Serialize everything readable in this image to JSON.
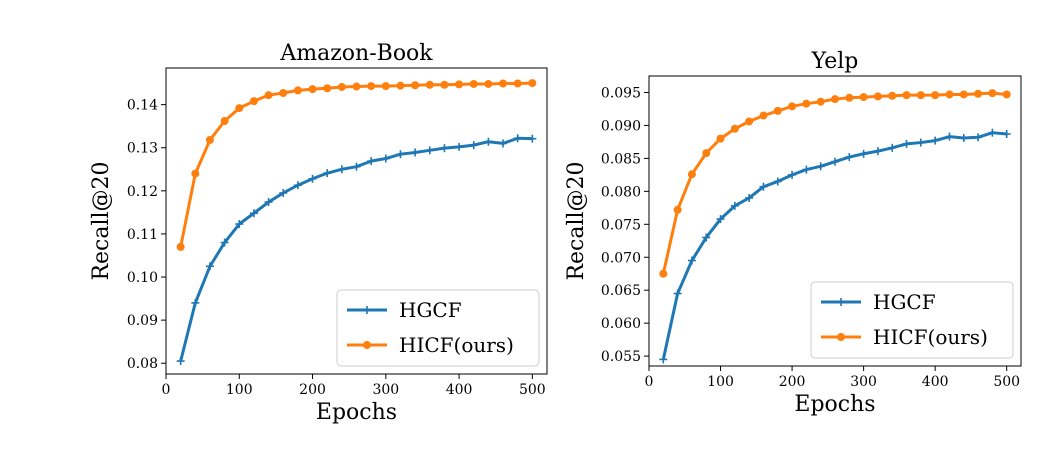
{
  "colors": {
    "hgcf": "#1f77b4",
    "hicf": "#ff7f0e"
  },
  "chart_data": [
    {
      "type": "line",
      "title": "Amazon-Book",
      "xlabel": "Epochs",
      "ylabel": "Recall@20",
      "xlim": [
        0,
        520
      ],
      "ylim": [
        0.0775,
        0.1485
      ],
      "xticks": [
        0,
        100,
        200,
        300,
        400,
        500
      ],
      "xtick_labels": [
        "0",
        "100",
        "200",
        "300",
        "400",
        "500"
      ],
      "yticks": [
        0.08,
        0.09,
        0.1,
        0.11,
        0.12,
        0.13,
        0.14
      ],
      "ytick_labels": [
        "0.08",
        "0.09",
        "0.10",
        "0.11",
        "0.12",
        "0.13",
        "0.14"
      ],
      "legend_position": "lower-right",
      "grid": false,
      "x": [
        20,
        40,
        60,
        80,
        100,
        120,
        140,
        160,
        180,
        200,
        220,
        240,
        260,
        280,
        300,
        320,
        340,
        360,
        380,
        400,
        420,
        440,
        460,
        480,
        500
      ],
      "series": [
        {
          "name": "HGCF",
          "color": "#1f77b4",
          "marker": "plus",
          "values": [
            0.0805,
            0.094,
            0.1025,
            0.108,
            0.1123,
            0.1148,
            0.1174,
            0.1195,
            0.1213,
            0.1228,
            0.1241,
            0.125,
            0.1256,
            0.1269,
            0.1275,
            0.1285,
            0.1289,
            0.1294,
            0.1299,
            0.1302,
            0.1306,
            0.1314,
            0.131,
            0.1322,
            0.1321
          ]
        },
        {
          "name": "HICF(ours)",
          "color": "#ff7f0e",
          "marker": "circle",
          "values": [
            0.107,
            0.124,
            0.1318,
            0.1362,
            0.1392,
            0.1408,
            0.1422,
            0.1427,
            0.1433,
            0.1436,
            0.1438,
            0.1441,
            0.1442,
            0.1443,
            0.1443,
            0.1444,
            0.1445,
            0.1446,
            0.1446,
            0.1447,
            0.1448,
            0.1448,
            0.1449,
            0.1449,
            0.145
          ]
        }
      ]
    },
    {
      "type": "line",
      "title": "Yelp",
      "xlabel": "Epochs",
      "ylabel": "Recall@20",
      "xlim": [
        0,
        520
      ],
      "ylim": [
        0.0535,
        0.0975
      ],
      "xticks": [
        0,
        100,
        200,
        300,
        400,
        500
      ],
      "xtick_labels": [
        "0",
        "100",
        "200",
        "300",
        "400",
        "500"
      ],
      "yticks": [
        0.055,
        0.06,
        0.065,
        0.07,
        0.075,
        0.08,
        0.085,
        0.09,
        0.095
      ],
      "ytick_labels": [
        "0.055",
        "0.060",
        "0.065",
        "0.070",
        "0.075",
        "0.080",
        "0.085",
        "0.090",
        "0.095"
      ],
      "legend_position": "lower-right",
      "grid": false,
      "x": [
        20,
        40,
        60,
        80,
        100,
        120,
        140,
        160,
        180,
        200,
        220,
        240,
        260,
        280,
        300,
        320,
        340,
        360,
        380,
        400,
        420,
        440,
        460,
        480,
        500
      ],
      "series": [
        {
          "name": "HGCF",
          "color": "#1f77b4",
          "marker": "plus",
          "values": [
            0.0545,
            0.0645,
            0.0695,
            0.073,
            0.0758,
            0.0778,
            0.079,
            0.0807,
            0.0815,
            0.0825,
            0.0833,
            0.0838,
            0.0845,
            0.0852,
            0.0857,
            0.0861,
            0.0866,
            0.0872,
            0.0874,
            0.0877,
            0.0883,
            0.0881,
            0.0882,
            0.0889,
            0.0887
          ]
        },
        {
          "name": "HICF(ours)",
          "color": "#ff7f0e",
          "marker": "circle",
          "values": [
            0.0675,
            0.0772,
            0.0826,
            0.0858,
            0.088,
            0.0895,
            0.0906,
            0.0915,
            0.0922,
            0.0929,
            0.0933,
            0.0936,
            0.094,
            0.0942,
            0.0943,
            0.0944,
            0.0945,
            0.0946,
            0.0946,
            0.0946,
            0.0947,
            0.0947,
            0.0948,
            0.0949,
            0.0947
          ]
        }
      ]
    }
  ]
}
